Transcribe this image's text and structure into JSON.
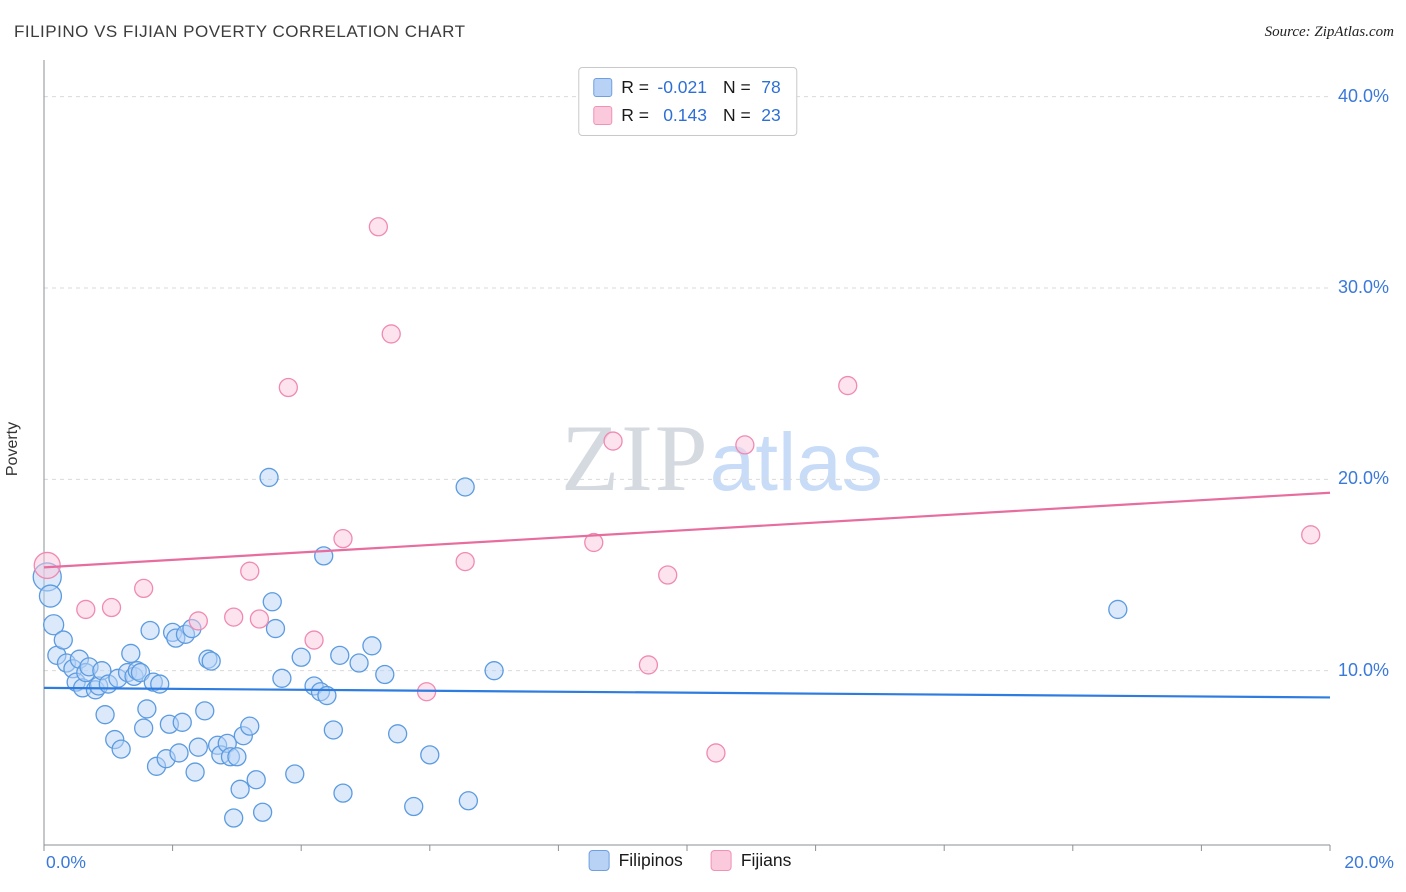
{
  "header": {
    "title": "FILIPINO VS FIJIAN POVERTY CORRELATION CHART",
    "source": "Source: ZipAtlas.com"
  },
  "legend": {
    "rows": [
      {
        "r_label": "R =",
        "r_value": "-0.021",
        "n_label": "N =",
        "n_value": "78"
      },
      {
        "r_label": "R =",
        "r_value": "0.143",
        "n_label": "N =",
        "n_value": "23"
      }
    ]
  },
  "watermark": {
    "zip": "ZIP",
    "atlas": "atlas"
  },
  "axes": {
    "ylabel": "Poverty",
    "x_left": "0.0%",
    "x_right": "20.0%",
    "ytick_labels": [
      "40.0%",
      "30.0%",
      "20.0%",
      "10.0%"
    ]
  },
  "bottom_legend": [
    {
      "label": "Filipinos"
    },
    {
      "label": "Fijians"
    }
  ],
  "chart_data": {
    "type": "scatter",
    "title": "FILIPINO VS FIJIAN POVERTY CORRELATION CHART",
    "xlabel": "",
    "ylabel": "Poverty",
    "xlim": [
      0,
      20
    ],
    "ylim": [
      0,
      42
    ],
    "grid_y": [
      10,
      20,
      30,
      40
    ],
    "x_tick_labels": [
      "0.0%",
      "20.0%"
    ],
    "colors": {
      "grid": "#d9d9d9",
      "axis": "#8b9097",
      "tick_label_blue": "#3a79da"
    },
    "series": [
      {
        "name": "Filipinos",
        "R": -0.021,
        "N": 78,
        "marker_fill": "#b7d3f7",
        "marker_stroke": "#5c9be0",
        "points": [
          [
            0.05,
            14.9,
            14
          ],
          [
            0.1,
            13.9,
            11
          ],
          [
            0.15,
            12.4,
            10
          ],
          [
            0.2,
            10.8
          ],
          [
            0.3,
            11.6
          ],
          [
            0.35,
            10.4
          ],
          [
            0.45,
            10.1
          ],
          [
            0.5,
            9.4
          ],
          [
            0.55,
            10.6
          ],
          [
            0.6,
            9.1
          ],
          [
            0.65,
            9.9
          ],
          [
            0.7,
            10.2
          ],
          [
            0.8,
            9.0
          ],
          [
            0.85,
            9.2
          ],
          [
            0.9,
            10.0
          ],
          [
            0.95,
            7.7
          ],
          [
            1.0,
            9.3
          ],
          [
            1.1,
            6.4
          ],
          [
            1.15,
            9.6
          ],
          [
            1.2,
            5.9
          ],
          [
            1.3,
            9.9
          ],
          [
            1.35,
            10.9
          ],
          [
            1.4,
            9.7
          ],
          [
            1.45,
            10.0
          ],
          [
            1.5,
            9.9
          ],
          [
            1.55,
            7.0
          ],
          [
            1.6,
            8.0
          ],
          [
            1.65,
            12.1
          ],
          [
            1.7,
            9.4
          ],
          [
            1.75,
            5.0
          ],
          [
            1.8,
            9.3
          ],
          [
            1.9,
            5.4
          ],
          [
            1.95,
            7.2
          ],
          [
            2.0,
            12.0
          ],
          [
            2.05,
            11.7
          ],
          [
            2.1,
            5.7
          ],
          [
            2.15,
            7.3
          ],
          [
            2.2,
            11.9
          ],
          [
            2.3,
            12.2
          ],
          [
            2.35,
            4.7
          ],
          [
            2.4,
            6.0
          ],
          [
            2.5,
            7.9
          ],
          [
            2.55,
            10.6
          ],
          [
            2.6,
            10.5
          ],
          [
            2.7,
            6.1
          ],
          [
            2.75,
            5.6
          ],
          [
            2.85,
            6.2
          ],
          [
            2.9,
            5.5
          ],
          [
            2.95,
            2.3
          ],
          [
            3.0,
            5.5
          ],
          [
            3.05,
            3.8
          ],
          [
            3.1,
            6.6
          ],
          [
            3.2,
            7.1
          ],
          [
            3.3,
            4.3
          ],
          [
            3.4,
            2.6
          ],
          [
            3.5,
            20.1
          ],
          [
            3.55,
            13.6
          ],
          [
            3.6,
            12.2
          ],
          [
            3.7,
            9.6
          ],
          [
            3.9,
            4.6
          ],
          [
            4.0,
            10.7
          ],
          [
            4.2,
            9.2
          ],
          [
            4.3,
            8.9
          ],
          [
            4.35,
            16.0
          ],
          [
            4.4,
            8.7
          ],
          [
            4.5,
            6.9
          ],
          [
            4.6,
            10.8
          ],
          [
            4.65,
            3.6
          ],
          [
            4.9,
            10.4
          ],
          [
            5.1,
            11.3
          ],
          [
            5.3,
            9.8
          ],
          [
            5.5,
            6.7
          ],
          [
            5.75,
            2.9
          ],
          [
            6.0,
            5.6
          ],
          [
            6.55,
            19.6
          ],
          [
            6.6,
            3.2
          ],
          [
            7.0,
            10.0
          ],
          [
            16.7,
            13.2
          ]
        ]
      },
      {
        "name": "Fijians",
        "R": 0.143,
        "N": 23,
        "marker_fill": "#fbc8db",
        "marker_stroke": "#f08ab2",
        "points": [
          [
            0.05,
            15.5,
            13
          ],
          [
            0.65,
            13.2
          ],
          [
            1.05,
            13.3
          ],
          [
            1.55,
            14.3
          ],
          [
            2.4,
            12.6
          ],
          [
            2.95,
            12.8
          ],
          [
            3.2,
            15.2
          ],
          [
            3.35,
            12.7
          ],
          [
            3.8,
            24.8
          ],
          [
            4.2,
            11.6
          ],
          [
            4.65,
            16.9
          ],
          [
            5.2,
            33.2
          ],
          [
            5.4,
            27.6
          ],
          [
            5.95,
            8.9
          ],
          [
            6.55,
            15.7
          ],
          [
            8.55,
            16.7
          ],
          [
            8.85,
            22.0
          ],
          [
            9.4,
            10.3
          ],
          [
            9.7,
            15.0
          ],
          [
            10.45,
            5.7
          ],
          [
            10.9,
            21.8
          ],
          [
            12.5,
            24.9
          ],
          [
            19.7,
            17.1
          ]
        ]
      }
    ],
    "trend_lines": [
      {
        "series": "Filipinos",
        "color": "#2e7ce0",
        "x": [
          0,
          20
        ],
        "y": [
          9.1,
          8.6
        ]
      },
      {
        "series": "Fijians",
        "color": "#e76d9f",
        "x": [
          0,
          20
        ],
        "y": [
          15.4,
          19.3
        ]
      }
    ],
    "legend_position": "bottom-center"
  }
}
